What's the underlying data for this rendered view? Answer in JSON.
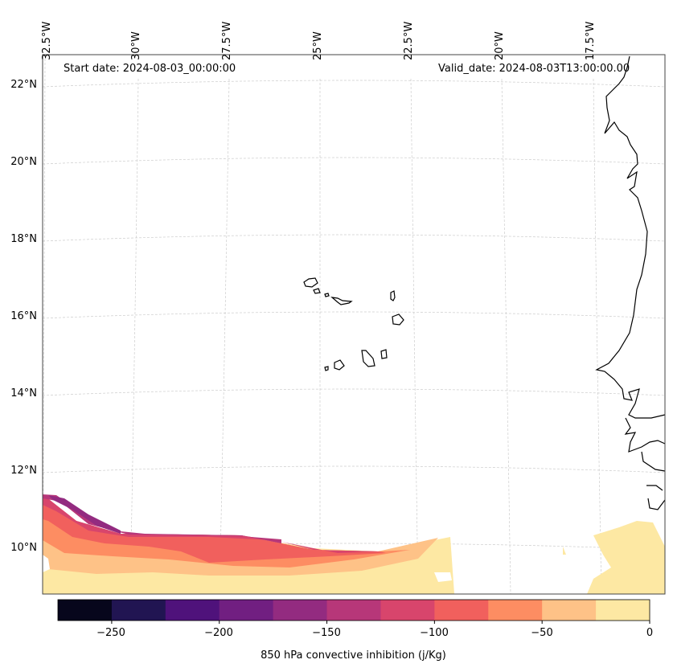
{
  "map": {
    "start_date": "Start date: 2024-08-03_00:00:00",
    "valid_date": "Valid_date: 2024-08-03T13:00:00.00",
    "longitude_labels": [
      "32.5°W",
      "30°W",
      "27.5°W",
      "25°W",
      "22.5°W",
      "20°W",
      "17.5°W"
    ],
    "latitude_labels": [
      "22°N",
      "20°N",
      "18°N",
      "16°N",
      "14°N",
      "12°N",
      "10°N"
    ],
    "variable": "850 hPa convective inhibition",
    "units": "j/Kg"
  },
  "colorbar": {
    "label": "850 hPa convective inhibition (j/Kg)",
    "ticks": [
      "−250",
      "−200",
      "−150",
      "−100",
      "−50",
      "0"
    ],
    "levels": [
      -275,
      -250,
      -225,
      -200,
      -175,
      -150,
      -125,
      -100,
      -75,
      -50,
      -25,
      0
    ],
    "colors": [
      "#07061c",
      "#211552",
      "#4f127b",
      "#711f81",
      "#932b80",
      "#b73779",
      "#d8456c",
      "#f1605d",
      "#fd8d62",
      "#fec287",
      "#fde8a3"
    ],
    "colormap": "magma"
  }
}
